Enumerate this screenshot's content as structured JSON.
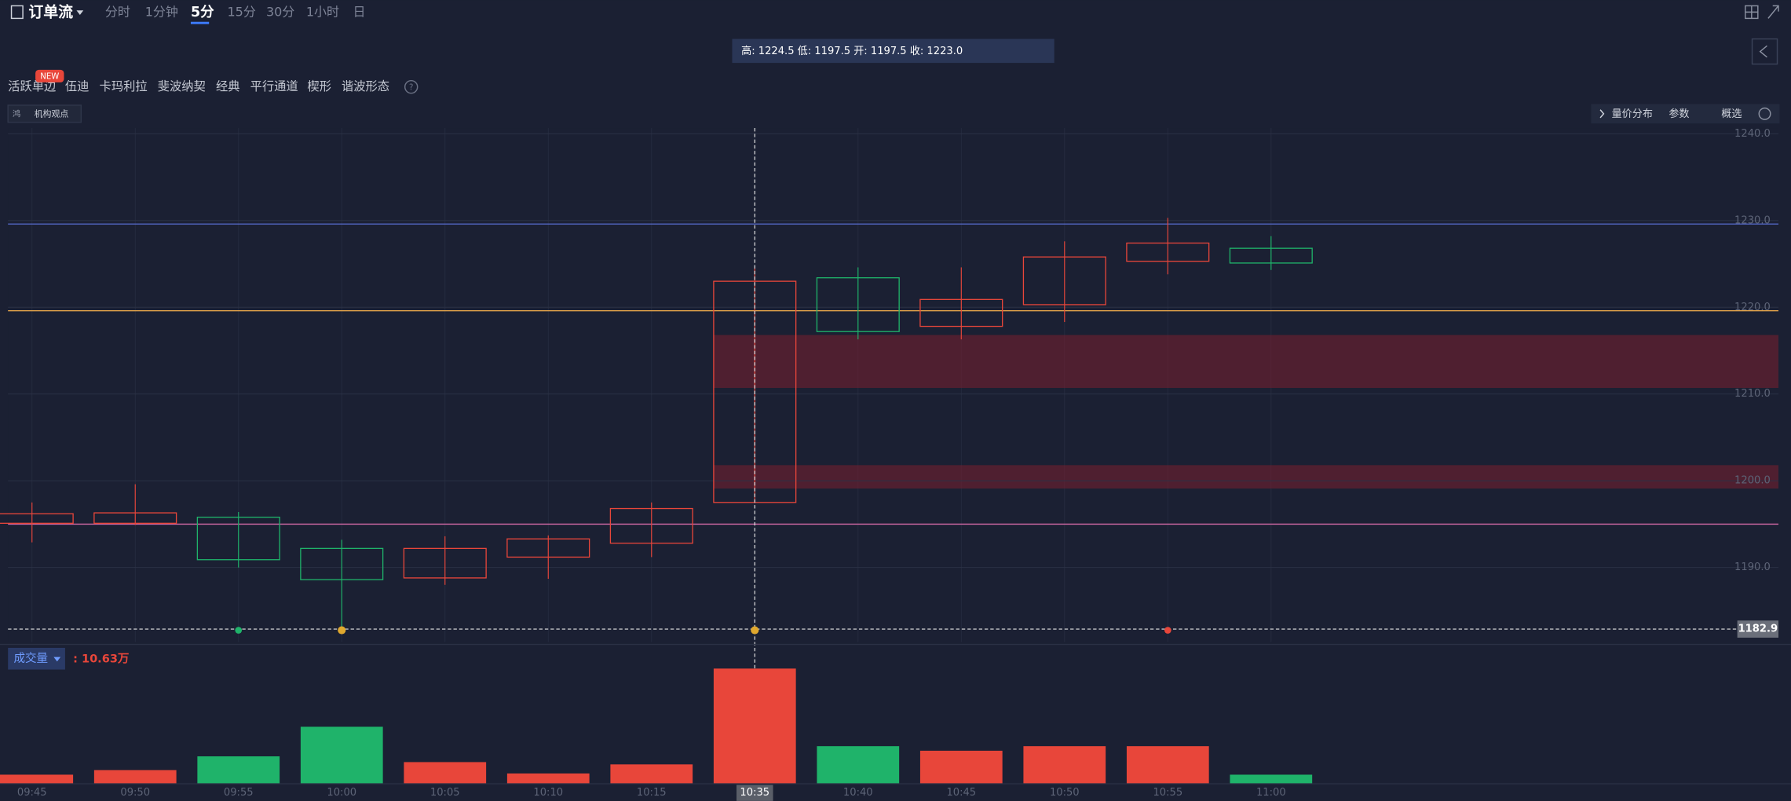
{
  "header": {
    "title": "订单流",
    "periods": [
      "分时",
      "1分钟",
      "5分",
      "15分",
      "30分",
      "1小时",
      "日"
    ]
  },
  "ohlc_info": "高: 1224.5 低: 1197.5 开: 1197.5 收: 1223.0",
  "tools": {
    "items": [
      "活跃单边",
      "伍迪",
      "卡玛利拉",
      "斐波纳契",
      "经典",
      "平行通道",
      "楔形",
      "谐波形态"
    ],
    "badge": "NEW"
  },
  "institution_button": "机构观点",
  "right_buttons": [
    "量价分布",
    "参数",
    "概选"
  ],
  "chart_data": [
    {
      "type": "candlestick",
      "categories": [
        "09:45",
        "09:50",
        "09:55",
        "10:00",
        "10:05",
        "10:10",
        "10:15",
        "10:35",
        "10:40",
        "10:45",
        "10:50",
        "10:55",
        "11:00"
      ],
      "open": [
        1195.1,
        1195.1,
        1195.8,
        1192.2,
        1188.8,
        1191.2,
        1192.8,
        1197.5,
        1223.4,
        1217.8,
        1220.3,
        1225.3,
        1226.8
      ],
      "high": [
        1197.5,
        1199.6,
        1196.4,
        1193.2,
        1193.6,
        1193.7,
        1197.5,
        1224.5,
        1224.6,
        1224.6,
        1227.6,
        1230.3,
        1228.2
      ],
      "low": [
        1192.9,
        1194.9,
        1190.0,
        1182.8,
        1188.0,
        1188.7,
        1191.2,
        1197.5,
        1216.3,
        1216.3,
        1218.3,
        1223.8,
        1224.3
      ],
      "close": [
        1196.2,
        1196.3,
        1190.9,
        1188.6,
        1192.2,
        1193.3,
        1196.8,
        1223.0,
        1217.2,
        1220.9,
        1225.8,
        1227.4,
        1225.1
      ],
      "up_color": "#e8463a",
      "down_color": "#1fb36a",
      "ylim": [
        1181.4,
        1240.66
      ],
      "yticks": [
        {
          "value": 1190,
          "label": "1190.0"
        },
        {
          "value": 1200,
          "label": "1200.0"
        },
        {
          "value": 1210,
          "label": "1210.0"
        },
        {
          "value": 1220,
          "label": "1220.0"
        },
        {
          "value": 1230,
          "label": "1230.0"
        },
        {
          "value": 1240,
          "label": "1240.0"
        }
      ],
      "grid": true,
      "levels": [
        {
          "value": 1229.6,
          "color": "#5b6fd6"
        },
        {
          "value": 1219.6,
          "color": "#e0a24a"
        },
        {
          "value": 1195.0,
          "color": "#d56aa8"
        }
      ],
      "zones": [
        [
          1210.7,
          1216.8
        ],
        [
          1199.1,
          1201.8
        ]
      ],
      "last_price": 1182.9,
      "crosshair_index": 7
    },
    {
      "type": "bar",
      "title": "成交量",
      "current_value": 10.63,
      "current_label": ": 10.63万",
      "values": [
        0.84,
        1.26,
        2.53,
        5.26,
        2.0,
        0.95,
        1.79,
        10.63,
        3.47,
        3.05,
        3.47,
        3.47,
        0.84
      ],
      "ylim": [
        0,
        11.7
      ]
    }
  ]
}
